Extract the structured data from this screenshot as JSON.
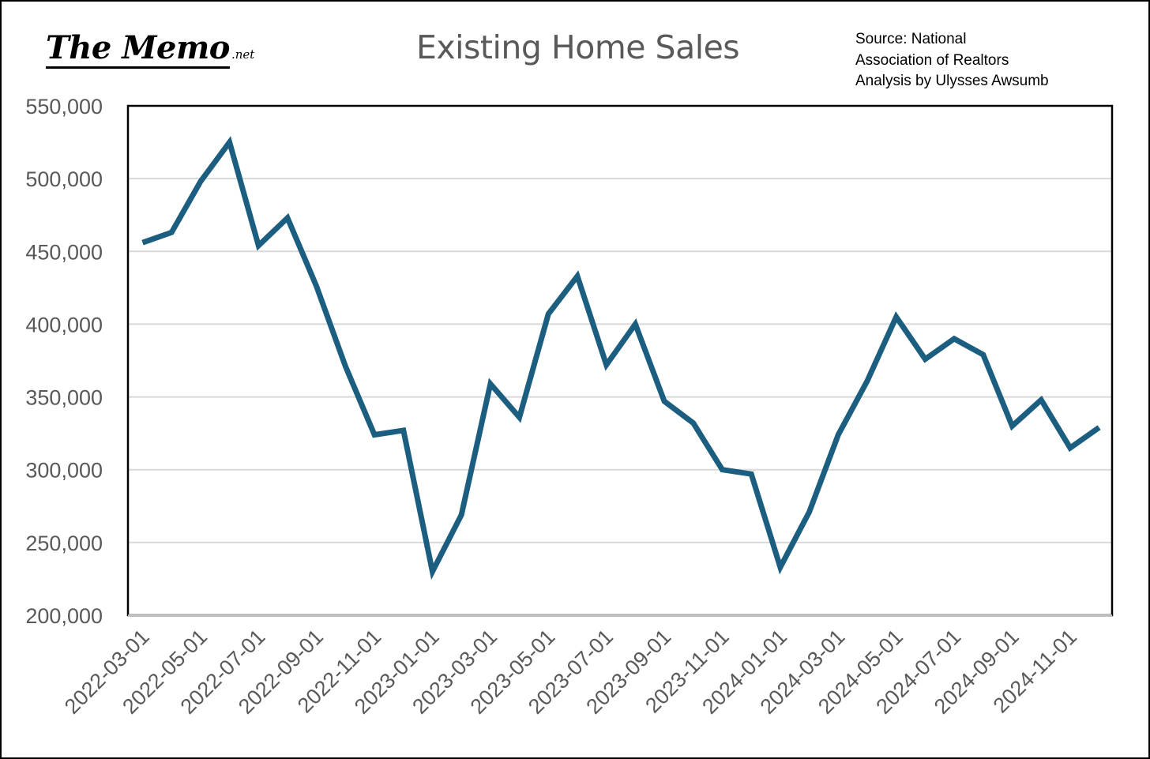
{
  "logo": {
    "main": "The Memo",
    "suffix": ".net"
  },
  "source": {
    "lines": [
      "Source: National",
      "Association of Realtors",
      "Analysis by Ulysses Awsumb"
    ]
  },
  "colors": {
    "line": "#1b5e80",
    "grid": "#d9d9d9",
    "axis_text": "#595959"
  },
  "chart_data": {
    "type": "line",
    "title": "Existing Home Sales",
    "xlabel": "",
    "ylabel": "",
    "ylim": [
      200000,
      550000
    ],
    "yticks": [
      200000,
      250000,
      300000,
      350000,
      400000,
      450000,
      500000,
      550000
    ],
    "ytick_labels": [
      "200,000",
      "250,000",
      "300,000",
      "350,000",
      "400,000",
      "450,000",
      "500,000",
      "550,000"
    ],
    "grid": true,
    "legend": "none",
    "x": [
      "2022-03-01",
      "2022-04-01",
      "2022-05-01",
      "2022-06-01",
      "2022-07-01",
      "2022-08-01",
      "2022-09-01",
      "2022-10-01",
      "2022-11-01",
      "2022-12-01",
      "2023-01-01",
      "2023-02-01",
      "2023-03-01",
      "2023-04-01",
      "2023-05-01",
      "2023-06-01",
      "2023-07-01",
      "2023-08-01",
      "2023-09-01",
      "2023-10-01",
      "2023-11-01",
      "2023-12-01",
      "2024-01-01",
      "2024-02-01",
      "2024-03-01",
      "2024-04-01",
      "2024-05-01",
      "2024-06-01",
      "2024-07-01",
      "2024-08-01",
      "2024-09-01",
      "2024-10-01",
      "2024-11-01",
      "2024-12-01"
    ],
    "xtick_labels": [
      "2022-03-01",
      "2022-05-01",
      "2022-07-01",
      "2022-09-01",
      "2022-11-01",
      "2023-01-01",
      "2023-03-01",
      "2023-05-01",
      "2023-07-01",
      "2023-09-01",
      "2023-11-01",
      "2024-01-01",
      "2024-03-01",
      "2024-05-01",
      "2024-07-01",
      "2024-09-01",
      "2024-11-01"
    ],
    "series": [
      {
        "values": [
          456000,
          463000,
          498000,
          525000,
          454000,
          473000,
          426000,
          371000,
          324000,
          327000,
          230000,
          269000,
          359000,
          336000,
          407000,
          433000,
          372000,
          400000,
          347000,
          332000,
          300000,
          297000,
          233000,
          271000,
          324000,
          361000,
          405000,
          376000,
          390000,
          379000,
          330000,
          348000,
          315000,
          329000
        ]
      }
    ]
  }
}
